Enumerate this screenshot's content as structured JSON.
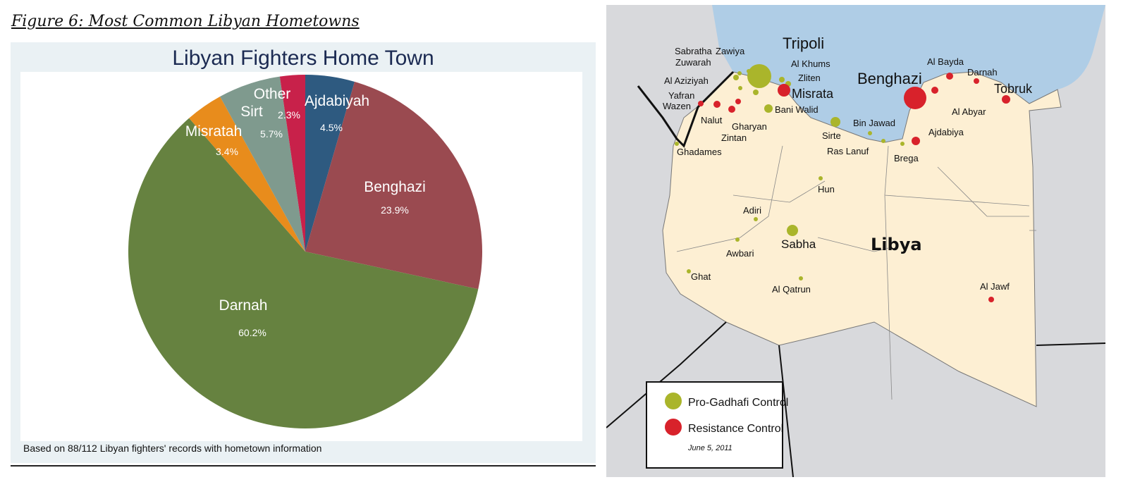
{
  "figure_caption": "Figure 6: Most Common Libyan Hometowns",
  "chart_data": {
    "type": "pie",
    "title": "Libyan Fighters Home Town",
    "note": "Based on 88/112 Libyan fighters' records with hometown information",
    "slices": [
      {
        "label": "Ajdabiyah",
        "value": 4.5,
        "value_label": "4.5%",
        "color": "#2e5a80"
      },
      {
        "label": "Benghazi",
        "value": 23.9,
        "value_label": "23.9%",
        "color": "#9a4a50"
      },
      {
        "label": "Darnah",
        "value": 60.2,
        "value_label": "60.2%",
        "color": "#668240"
      },
      {
        "label": "Misratah",
        "value": 3.4,
        "value_label": "3.4%",
        "color": "#e88c1c"
      },
      {
        "label": "Sirt",
        "value": 5.7,
        "value_label": "5.7%",
        "color": "#7f9a8e"
      },
      {
        "label": "Other",
        "value": 2.3,
        "value_label": "2.3%",
        "color": "#c8214a"
      }
    ]
  },
  "map": {
    "country_label": "Libya",
    "colors": {
      "pro": "#aab52b",
      "resistance": "#d8222b",
      "sea": "#afcde6",
      "land": "#fdefd3",
      "other_land": "#d8d9dc"
    },
    "cities": [
      {
        "name": "Tripoli",
        "control": "pro"
      },
      {
        "name": "Sabratha",
        "control": "pro"
      },
      {
        "name": "Zawiya",
        "control": "pro"
      },
      {
        "name": "Zuwarah",
        "control": "pro"
      },
      {
        "name": "Al Khums",
        "control": "pro"
      },
      {
        "name": "Zliten",
        "control": "pro"
      },
      {
        "name": "Al Aziziyah",
        "control": "pro"
      },
      {
        "name": "Yafran",
        "control": "resistance"
      },
      {
        "name": "Wazen",
        "control": "resistance"
      },
      {
        "name": "Nalut",
        "control": "resistance"
      },
      {
        "name": "Zintan",
        "control": "resistance"
      },
      {
        "name": "Gharyan",
        "control": "pro"
      },
      {
        "name": "Bani Walid",
        "control": "pro"
      },
      {
        "name": "Misrata",
        "control": "resistance"
      },
      {
        "name": "Benghazi",
        "control": "resistance"
      },
      {
        "name": "Al Bayda",
        "control": "resistance"
      },
      {
        "name": "Darnah",
        "control": "resistance"
      },
      {
        "name": "Tobruk",
        "control": "resistance"
      },
      {
        "name": "Al Abyar",
        "control": "resistance"
      },
      {
        "name": "Ajdabiya",
        "control": "resistance"
      },
      {
        "name": "Sirte",
        "control": "pro"
      },
      {
        "name": "Bin Jawad",
        "control": "pro"
      },
      {
        "name": "Ras Lanuf",
        "control": "pro"
      },
      {
        "name": "Brega",
        "control": "pro"
      },
      {
        "name": "Ghadames",
        "control": "pro"
      },
      {
        "name": "Hun",
        "control": "pro"
      },
      {
        "name": "Adiri",
        "control": "pro"
      },
      {
        "name": "Sabha",
        "control": "pro"
      },
      {
        "name": "Awbari",
        "control": "pro"
      },
      {
        "name": "Ghat",
        "control": "pro"
      },
      {
        "name": "Al Qatrun",
        "control": "pro"
      },
      {
        "name": "Al Jawf",
        "control": "resistance"
      }
    ],
    "legend": {
      "pro_label": "Pro-Gadhafi Control",
      "resistance_label": "Resistance Control",
      "date": "June 5, 2011"
    }
  }
}
